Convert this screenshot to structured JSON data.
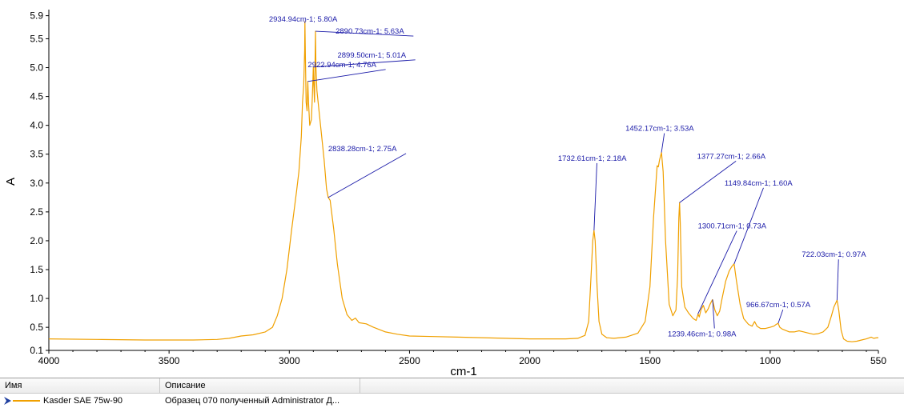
{
  "chart_data": {
    "type": "line",
    "xlabel": "cm-1",
    "ylabel": "A",
    "xlim": [
      4000,
      550
    ],
    "ylim": [
      0.1,
      5.95
    ],
    "x_ticks": [
      4000,
      3500,
      3000,
      2500,
      2000,
      1500,
      1000,
      550
    ],
    "y_ticks": [
      0.1,
      0.5,
      1.0,
      1.5,
      2.0,
      2.5,
      3.0,
      3.5,
      4.0,
      4.5,
      5.0,
      5.5,
      5.9
    ],
    "grid": false,
    "series": [
      {
        "name": "Kasder SAE 75w-90",
        "color": "#f0a000",
        "points": [
          [
            4000,
            0.3
          ],
          [
            3800,
            0.29
          ],
          [
            3600,
            0.28
          ],
          [
            3400,
            0.28
          ],
          [
            3300,
            0.29
          ],
          [
            3250,
            0.31
          ],
          [
            3200,
            0.35
          ],
          [
            3150,
            0.37
          ],
          [
            3100,
            0.42
          ],
          [
            3070,
            0.5
          ],
          [
            3050,
            0.7
          ],
          [
            3030,
            1.0
          ],
          [
            3010,
            1.5
          ],
          [
            2990,
            2.2
          ],
          [
            2970,
            2.85
          ],
          [
            2960,
            3.2
          ],
          [
            2950,
            3.8
          ],
          [
            2945,
            4.4
          ],
          [
            2940,
            4.7
          ],
          [
            2936,
            5.3
          ],
          [
            2935,
            5.8
          ],
          [
            2933,
            5.2
          ],
          [
            2930,
            4.4
          ],
          [
            2926,
            4.25
          ],
          [
            2923,
            4.76
          ],
          [
            2920,
            4.4
          ],
          [
            2915,
            4.0
          ],
          [
            2908,
            4.1
          ],
          [
            2904,
            4.5
          ],
          [
            2900,
            5.01
          ],
          [
            2898,
            4.7
          ],
          [
            2895,
            4.4
          ],
          [
            2891,
            5.63
          ],
          [
            2889,
            5.0
          ],
          [
            2885,
            4.6
          ],
          [
            2875,
            4.2
          ],
          [
            2865,
            3.8
          ],
          [
            2855,
            3.4
          ],
          [
            2845,
            2.9
          ],
          [
            2838,
            2.75
          ],
          [
            2830,
            2.7
          ],
          [
            2815,
            2.2
          ],
          [
            2800,
            1.6
          ],
          [
            2780,
            1.0
          ],
          [
            2760,
            0.72
          ],
          [
            2740,
            0.62
          ],
          [
            2725,
            0.66
          ],
          [
            2710,
            0.58
          ],
          [
            2680,
            0.56
          ],
          [
            2650,
            0.5
          ],
          [
            2600,
            0.42
          ],
          [
            2550,
            0.38
          ],
          [
            2500,
            0.35
          ],
          [
            2400,
            0.34
          ],
          [
            2300,
            0.33
          ],
          [
            2200,
            0.32
          ],
          [
            2100,
            0.31
          ],
          [
            2000,
            0.3
          ],
          [
            1900,
            0.3
          ],
          [
            1850,
            0.3
          ],
          [
            1800,
            0.31
          ],
          [
            1770,
            0.36
          ],
          [
            1755,
            0.6
          ],
          [
            1745,
            1.4
          ],
          [
            1738,
            2.0
          ],
          [
            1733,
            2.18
          ],
          [
            1728,
            2.0
          ],
          [
            1720,
            1.2
          ],
          [
            1712,
            0.6
          ],
          [
            1700,
            0.38
          ],
          [
            1680,
            0.32
          ],
          [
            1650,
            0.31
          ],
          [
            1600,
            0.33
          ],
          [
            1550,
            0.4
          ],
          [
            1520,
            0.6
          ],
          [
            1500,
            1.2
          ],
          [
            1485,
            2.4
          ],
          [
            1470,
            3.3
          ],
          [
            1465,
            3.28
          ],
          [
            1460,
            3.4
          ],
          [
            1452,
            3.53
          ],
          [
            1445,
            3.2
          ],
          [
            1435,
            2.0
          ],
          [
            1420,
            0.9
          ],
          [
            1405,
            0.7
          ],
          [
            1392,
            0.8
          ],
          [
            1385,
            1.4
          ],
          [
            1380,
            2.4
          ],
          [
            1377,
            2.66
          ],
          [
            1374,
            2.3
          ],
          [
            1368,
            1.2
          ],
          [
            1355,
            0.85
          ],
          [
            1340,
            0.75
          ],
          [
            1320,
            0.65
          ],
          [
            1308,
            0.62
          ],
          [
            1300,
            0.73
          ],
          [
            1295,
            0.68
          ],
          [
            1288,
            0.8
          ],
          [
            1278,
            0.88
          ],
          [
            1268,
            0.75
          ],
          [
            1258,
            0.82
          ],
          [
            1250,
            0.9
          ],
          [
            1240,
            0.98
          ],
          [
            1230,
            0.8
          ],
          [
            1220,
            0.7
          ],
          [
            1210,
            0.78
          ],
          [
            1200,
            1.0
          ],
          [
            1185,
            1.3
          ],
          [
            1170,
            1.48
          ],
          [
            1160,
            1.55
          ],
          [
            1150,
            1.6
          ],
          [
            1140,
            1.3
          ],
          [
            1125,
            0.9
          ],
          [
            1110,
            0.65
          ],
          [
            1090,
            0.55
          ],
          [
            1075,
            0.52
          ],
          [
            1065,
            0.6
          ],
          [
            1055,
            0.52
          ],
          [
            1040,
            0.48
          ],
          [
            1020,
            0.48
          ],
          [
            1000,
            0.5
          ],
          [
            985,
            0.52
          ],
          [
            975,
            0.55
          ],
          [
            967,
            0.57
          ],
          [
            960,
            0.5
          ],
          [
            950,
            0.47
          ],
          [
            920,
            0.42
          ],
          [
            900,
            0.42
          ],
          [
            880,
            0.44
          ],
          [
            860,
            0.42
          ],
          [
            840,
            0.4
          ],
          [
            820,
            0.38
          ],
          [
            800,
            0.39
          ],
          [
            780,
            0.42
          ],
          [
            760,
            0.5
          ],
          [
            745,
            0.7
          ],
          [
            735,
            0.85
          ],
          [
            722,
            0.97
          ],
          [
            715,
            0.8
          ],
          [
            705,
            0.45
          ],
          [
            695,
            0.3
          ],
          [
            680,
            0.26
          ],
          [
            660,
            0.25
          ],
          [
            640,
            0.26
          ],
          [
            620,
            0.28
          ],
          [
            600,
            0.3
          ],
          [
            580,
            0.33
          ],
          [
            570,
            0.31
          ],
          [
            555,
            0.32
          ],
          [
            550,
            0.32
          ]
        ]
      }
    ],
    "annotations": [
      {
        "x": 2934.94,
        "y": 5.8,
        "text": "2934.94cm-1; 5.80A"
      },
      {
        "x": 2890.73,
        "y": 5.63,
        "text": "2890.73cm-1; 5.63A"
      },
      {
        "x": 2899.5,
        "y": 5.01,
        "text": "2899.50cm-1; 5.01A"
      },
      {
        "x": 2922.94,
        "y": 4.76,
        "text": "2922.94cm-1; 4.76A"
      },
      {
        "x": 2838.28,
        "y": 2.75,
        "text": "2838.28cm-1; 2.75A"
      },
      {
        "x": 1732.61,
        "y": 2.18,
        "text": "1732.61cm-1; 2.18A"
      },
      {
        "x": 1452.17,
        "y": 3.53,
        "text": "1452.17cm-1; 3.53A"
      },
      {
        "x": 1377.27,
        "y": 2.66,
        "text": "1377.27cm-1; 2.66A"
      },
      {
        "x": 1300.71,
        "y": 0.73,
        "text": "1300.71cm-1; 0.73A"
      },
      {
        "x": 1149.84,
        "y": 1.6,
        "text": "1149.84cm-1; 1.60A"
      },
      {
        "x": 1239.46,
        "y": 0.98,
        "text": "1239.46cm-1; 0.98A"
      },
      {
        "x": 966.67,
        "y": 0.57,
        "text": "966.67cm-1; 0.57A"
      },
      {
        "x": 722.03,
        "y": 0.97,
        "text": "722.03cm-1; 0.97A"
      }
    ]
  },
  "legend_table": {
    "columns": {
      "name": "Имя",
      "description": "Описание"
    },
    "rows": [
      {
        "name": "Kasder SAE 75w-90",
        "description": "Образец 070 полученный Administrator Д..."
      }
    ]
  }
}
